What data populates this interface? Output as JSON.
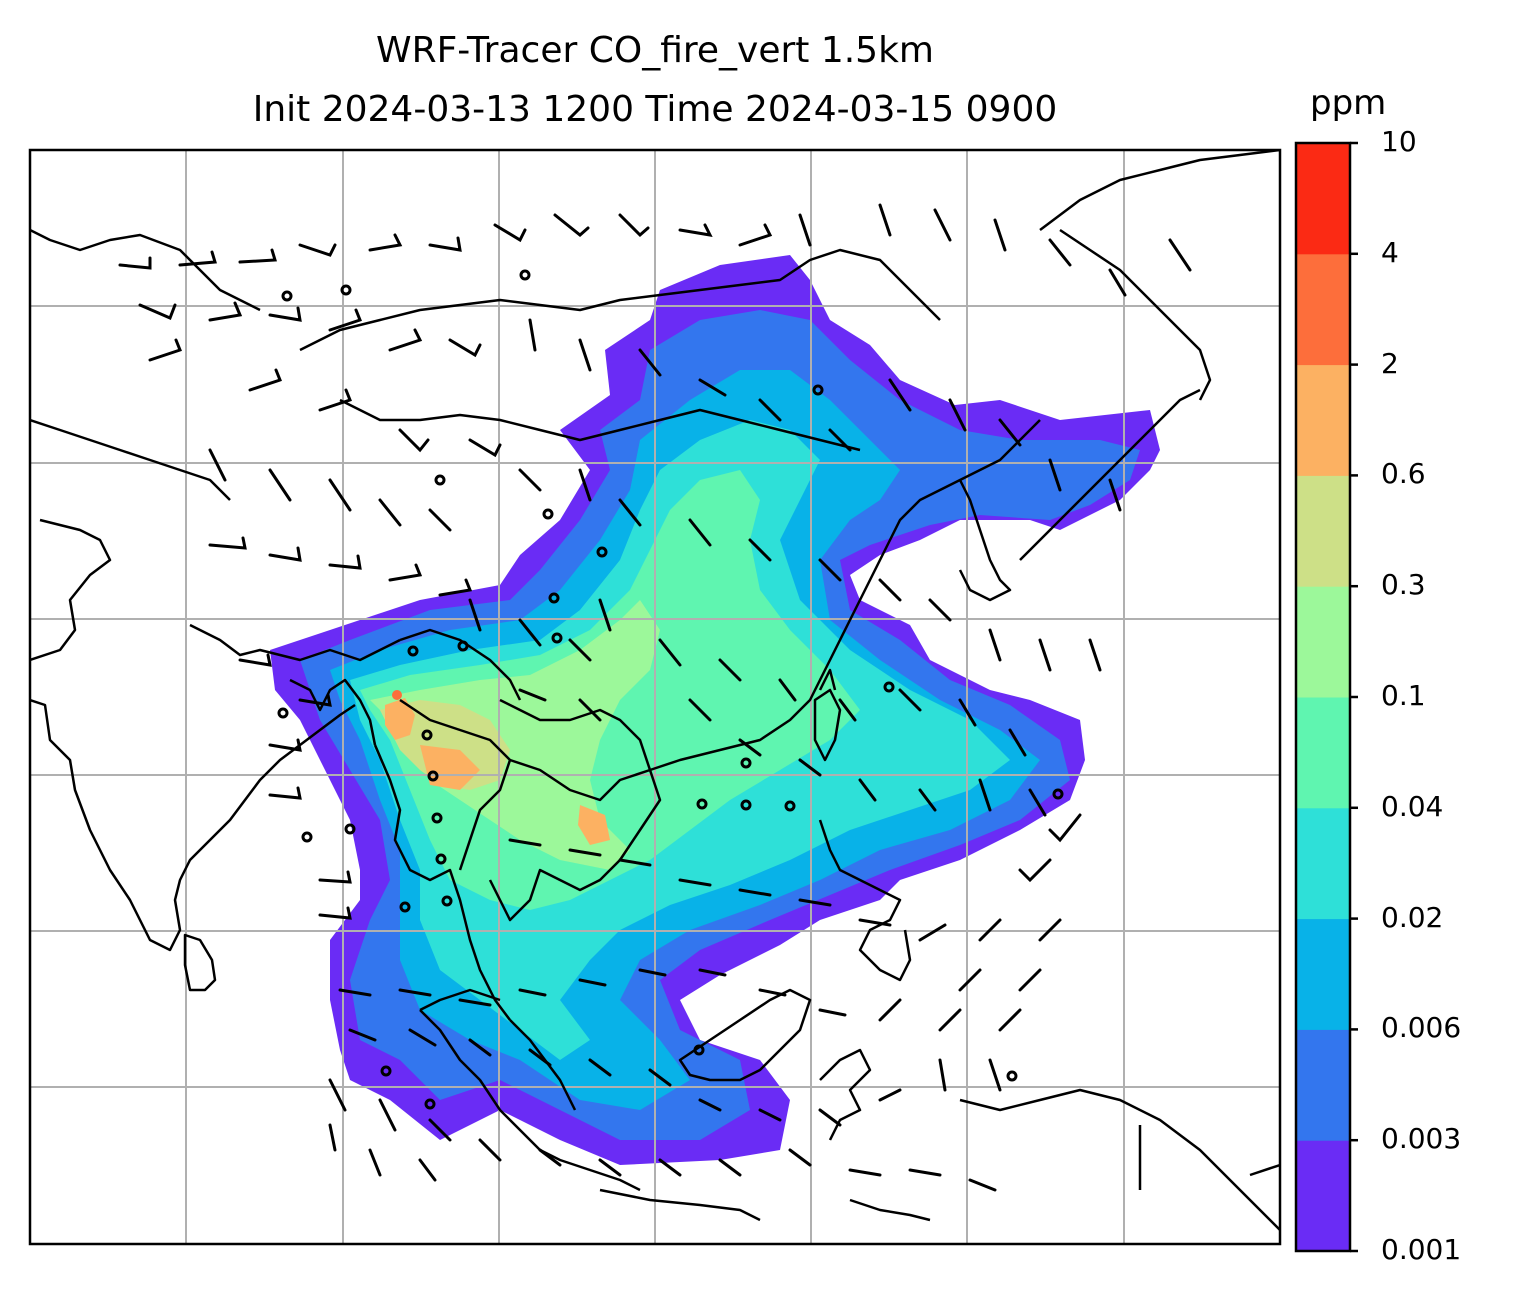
{
  "title": {
    "line1": "WRF-Tracer CO_fire_vert 1.5km",
    "line2": "Init 2024-03-13 1200 Time 2024-03-15 0900"
  },
  "colorbar": {
    "unit": "ppm",
    "levels": [
      "0.001",
      "0.003",
      "0.006",
      "0.02",
      "0.04",
      "0.1",
      "0.3",
      "0.6",
      "2",
      "4",
      "10"
    ],
    "colors": [
      "#6a2cf5",
      "#3376ee",
      "#08b2e8",
      "#2ee0d8",
      "#5ff5b0",
      "#9cf89a",
      "#cde087",
      "#fcb162",
      "#fd6e3b",
      "#fb2a14"
    ]
  },
  "map": {
    "gridlines": true,
    "coastline_color": "#000000",
    "grid_color": "#b0b0b0"
  }
}
